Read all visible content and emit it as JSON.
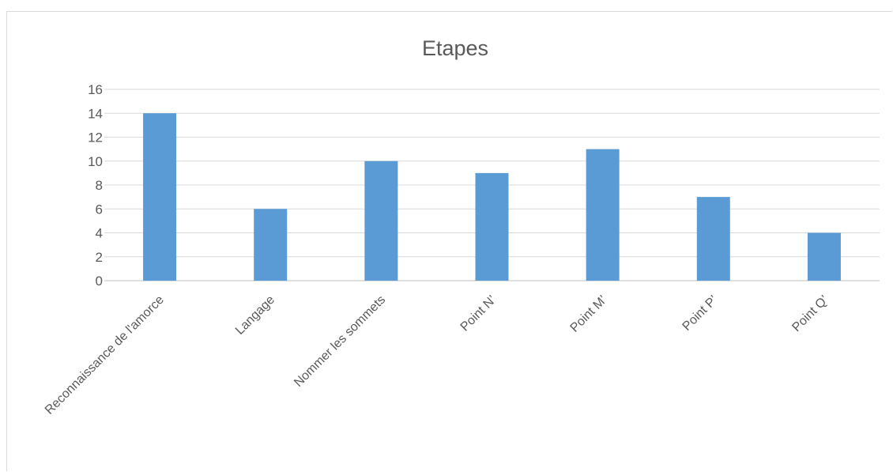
{
  "chart_data": {
    "type": "bar",
    "title": "Etapes",
    "categories": [
      "Reconnaissance de l'amorce",
      "Langage",
      "Nommer les sommets",
      "Point N’",
      "Point M’",
      "Point P’",
      "Point Q’"
    ],
    "values": [
      14,
      6,
      10,
      9,
      11,
      7,
      4
    ],
    "yticks": [
      "0",
      "2",
      "4",
      "6",
      "8",
      "10",
      "12",
      "14",
      "16"
    ],
    "ylim": [
      0,
      16
    ],
    "grid": true,
    "legend": "none",
    "xlabel": "",
    "ylabel": "",
    "bar_color": "#5b9bd5"
  }
}
